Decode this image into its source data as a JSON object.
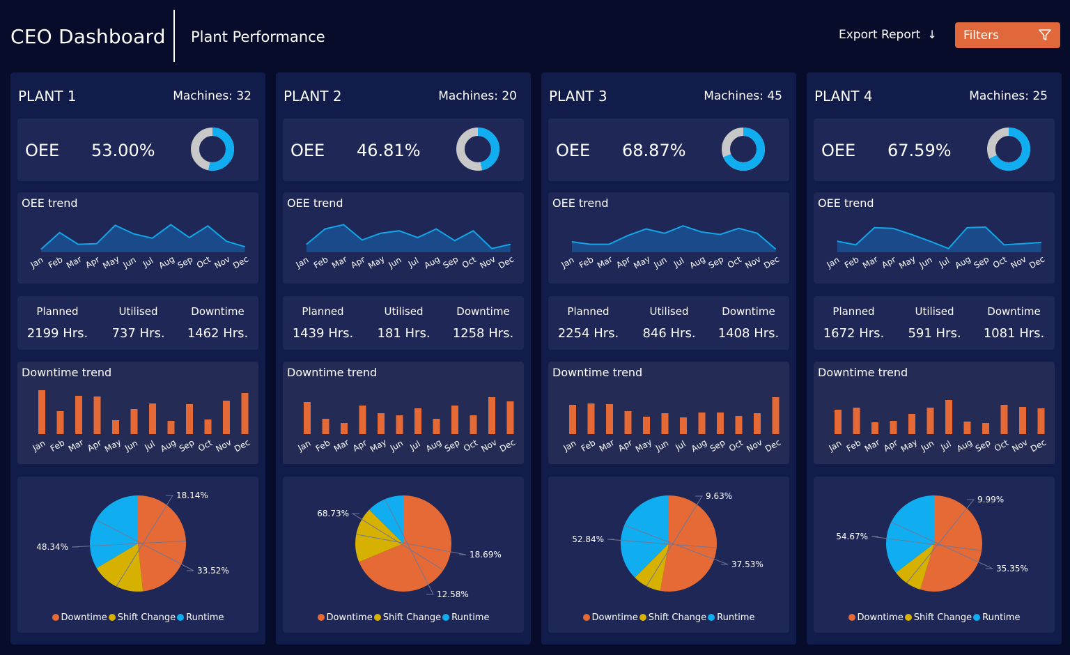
{
  "header": {
    "title": "CEO Dashboard",
    "subtitle": "Plant Performance",
    "export_label": "Export Report",
    "export_arrow": "↓",
    "filters_label": "Filters"
  },
  "colors": {
    "background": "#060c2a",
    "panel": "#121c4a",
    "card": "#1e2756",
    "accent_orange": "#e0683a",
    "line_blue": "#12a6e8",
    "area_blue": "#1a4a8a",
    "donut_gray": "#c8c8c8",
    "downtime": "#e66a35",
    "shift_change": "#d6b100",
    "runtime": "#10aef0"
  },
  "labels": {
    "oee": "OEE",
    "oee_trend": "OEE trend",
    "downtime_trend": "Downtime trend",
    "planned": "Planned",
    "utilised": "Utilised",
    "downtime": "Downtime"
  },
  "months": [
    "Jan",
    "Feb",
    "Mar",
    "Apr",
    "May",
    "Jun",
    "Jul",
    "Aug",
    "Sep",
    "Oct",
    "Nov",
    "Dec"
  ],
  "legend": [
    "Downtime",
    "Shift Change",
    "Runtime"
  ],
  "plants": [
    {
      "name": "PLANT 1",
      "machines": "Machines: 32",
      "oee_text": "53.00%",
      "oee": 0.53,
      "hours": {
        "planned": "2199 Hrs.",
        "utilised": "737 Hrs.",
        "downtime": "1462 Hrs."
      },
      "pie": [
        {
          "name": "Downtime",
          "value": 48.34,
          "label": "48.34%"
        },
        {
          "name": "Shift Change",
          "value": 18.14,
          "label": "18.14%"
        },
        {
          "name": "Runtime",
          "value": 33.52,
          "label": "33.52%"
        }
      ]
    },
    {
      "name": "PLANT 2",
      "machines": "Machines: 20",
      "oee_text": "46.81%",
      "oee": 0.4681,
      "hours": {
        "planned": "1439 Hrs.",
        "utilised": "181 Hrs.",
        "downtime": "1258 Hrs."
      },
      "pie": [
        {
          "name": "Downtime",
          "value": 68.73,
          "label": "68.73%"
        },
        {
          "name": "Shift Change",
          "value": 18.69,
          "label": "18.69%"
        },
        {
          "name": "Runtime",
          "value": 12.58,
          "label": "12.58%"
        }
      ]
    },
    {
      "name": "PLANT 3",
      "machines": "Machines: 45",
      "oee_text": "68.87%",
      "oee": 0.6887,
      "hours": {
        "planned": "2254 Hrs.",
        "utilised": "846 Hrs.",
        "downtime": "1408 Hrs."
      },
      "pie": [
        {
          "name": "Downtime",
          "value": 52.84,
          "label": "52.84%"
        },
        {
          "name": "Shift Change",
          "value": 9.63,
          "label": "9.63%"
        },
        {
          "name": "Runtime",
          "value": 37.53,
          "label": "37.53%"
        }
      ]
    },
    {
      "name": "PLANT 4",
      "machines": "Machines: 25",
      "oee_text": "67.59%",
      "oee": 0.6759,
      "hours": {
        "planned": "1672 Hrs.",
        "utilised": "591 Hrs.",
        "downtime": "1081 Hrs."
      },
      "pie": [
        {
          "name": "Downtime",
          "value": 54.67,
          "label": "54.67%"
        },
        {
          "name": "Shift Change",
          "value": 9.99,
          "label": "9.99%"
        },
        {
          "name": "Runtime",
          "value": 35.35,
          "label": "35.35%"
        }
      ]
    }
  ],
  "chart_data": [
    {
      "type": "area",
      "title": "OEE trend",
      "plant": "PLANT 1",
      "categories": [
        "Jan",
        "Feb",
        "Mar",
        "Apr",
        "May",
        "Jun",
        "Jul",
        "Aug",
        "Sep",
        "Oct",
        "Nov",
        "Dec"
      ],
      "values": [
        5,
        32,
        13,
        14,
        44,
        30,
        23,
        45,
        24,
        43,
        18,
        9
      ],
      "ylim": [
        0,
        50
      ]
    },
    {
      "type": "area",
      "title": "OEE trend",
      "plant": "PLANT 2",
      "categories": [
        "Jan",
        "Feb",
        "Mar",
        "Apr",
        "May",
        "Jun",
        "Jul",
        "Aug",
        "Sep",
        "Oct",
        "Nov",
        "Dec"
      ],
      "values": [
        13,
        38,
        45,
        20,
        31,
        35,
        24,
        38,
        19,
        35,
        6,
        13
      ],
      "ylim": [
        0,
        50
      ]
    },
    {
      "type": "area",
      "title": "OEE trend",
      "plant": "PLANT 3",
      "categories": [
        "Jan",
        "Feb",
        "Mar",
        "Apr",
        "May",
        "Jun",
        "Jul",
        "Aug",
        "Sep",
        "Oct",
        "Nov",
        "Dec"
      ],
      "values": [
        17,
        13,
        13,
        27,
        38,
        31,
        43,
        33,
        29,
        39,
        31,
        5
      ],
      "ylim": [
        0,
        50
      ]
    },
    {
      "type": "area",
      "title": "OEE trend",
      "plant": "PLANT 4",
      "categories": [
        "Jan",
        "Feb",
        "Mar",
        "Apr",
        "May",
        "Jun",
        "Jul",
        "Aug",
        "Sep",
        "Oct",
        "Nov",
        "Dec"
      ],
      "values": [
        18,
        12,
        40,
        39,
        29,
        18,
        6,
        40,
        41,
        12,
        14,
        16
      ],
      "ylim": [
        0,
        50
      ]
    },
    {
      "type": "bar",
      "title": "Downtime trend",
      "plant": "PLANT 1",
      "categories": [
        "Jan",
        "Feb",
        "Mar",
        "Apr",
        "May",
        "Jun",
        "Jul",
        "Aug",
        "Sep",
        "Oct",
        "Nov",
        "Dec"
      ],
      "values": [
        63,
        33,
        55,
        54,
        20,
        36,
        44,
        19,
        43,
        21,
        48,
        59
      ],
      "ylim": [
        0,
        70
      ]
    },
    {
      "type": "bar",
      "title": "Downtime trend",
      "plant": "PLANT 2",
      "categories": [
        "Jan",
        "Feb",
        "Mar",
        "Apr",
        "May",
        "Jun",
        "Jul",
        "Aug",
        "Sep",
        "Oct",
        "Nov",
        "Dec"
      ],
      "values": [
        46,
        22,
        16,
        41,
        30,
        27,
        37,
        22,
        41,
        27,
        53,
        47
      ],
      "ylim": [
        0,
        70
      ]
    },
    {
      "type": "bar",
      "title": "Downtime trend",
      "plant": "PLANT 3",
      "categories": [
        "Jan",
        "Feb",
        "Mar",
        "Apr",
        "May",
        "Jun",
        "Jul",
        "Aug",
        "Sep",
        "Oct",
        "Nov",
        "Dec"
      ],
      "values": [
        42,
        44,
        43,
        33,
        25,
        30,
        24,
        31,
        31,
        26,
        30,
        53
      ],
      "ylim": [
        0,
        70
      ]
    },
    {
      "type": "bar",
      "title": "Downtime trend",
      "plant": "PLANT 4",
      "categories": [
        "Jan",
        "Feb",
        "Mar",
        "Apr",
        "May",
        "Jun",
        "Jul",
        "Aug",
        "Sep",
        "Oct",
        "Nov",
        "Dec"
      ],
      "values": [
        35,
        38,
        17,
        19,
        29,
        38,
        49,
        18,
        16,
        42,
        39,
        37
      ],
      "ylim": [
        0,
        70
      ]
    },
    {
      "type": "pie",
      "plant": "PLANT 1",
      "categories": [
        "Downtime",
        "Shift Change",
        "Runtime"
      ],
      "values": [
        48.34,
        18.14,
        33.52
      ]
    },
    {
      "type": "pie",
      "plant": "PLANT 2",
      "categories": [
        "Downtime",
        "Shift Change",
        "Runtime"
      ],
      "values": [
        68.73,
        18.69,
        12.58
      ]
    },
    {
      "type": "pie",
      "plant": "PLANT 3",
      "categories": [
        "Downtime",
        "Shift Change",
        "Runtime"
      ],
      "values": [
        52.84,
        9.63,
        37.53
      ]
    },
    {
      "type": "pie",
      "plant": "PLANT 4",
      "categories": [
        "Downtime",
        "Shift Change",
        "Runtime"
      ],
      "values": [
        54.67,
        9.99,
        35.35
      ]
    }
  ]
}
